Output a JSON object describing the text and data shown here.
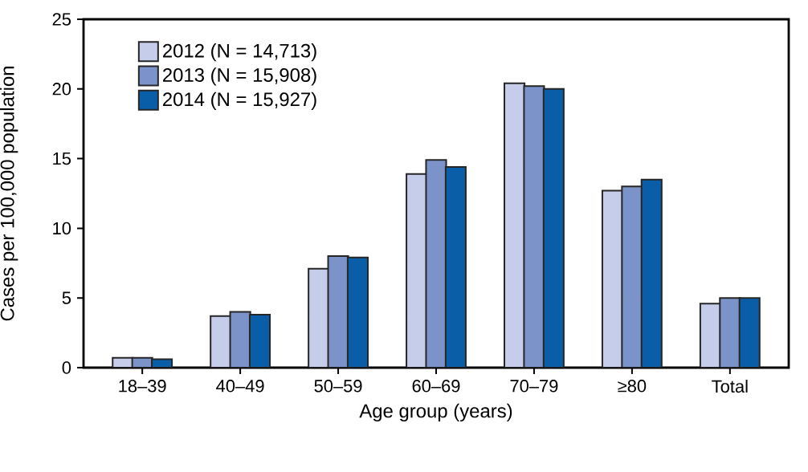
{
  "chart_data": {
    "type": "bar",
    "categories": [
      "18–39",
      "40–49",
      "50–59",
      "60–69",
      "70–79",
      "≥80",
      "Total"
    ],
    "series": [
      {
        "name": "2012 (N = 14,713)",
        "color": "#c5cdea",
        "values": [
          0.7,
          3.7,
          7.1,
          13.9,
          20.4,
          12.7,
          4.6
        ]
      },
      {
        "name": "2013 (N = 15,908)",
        "color": "#7b93c9",
        "values": [
          0.7,
          4.0,
          8.0,
          14.9,
          20.2,
          13.0,
          5.0
        ]
      },
      {
        "name": "2014 (N = 15,927)",
        "color": "#0a5ea8",
        "values": [
          0.6,
          3.8,
          7.9,
          14.4,
          20.0,
          13.5,
          5.0
        ]
      }
    ],
    "xlabel": "Age group (years)",
    "ylabel": "Cases per 100,000 population",
    "ylim": [
      0,
      25
    ],
    "yticks": [
      0,
      5,
      10,
      15,
      20,
      25
    ],
    "legend": "top left",
    "grid": false
  }
}
